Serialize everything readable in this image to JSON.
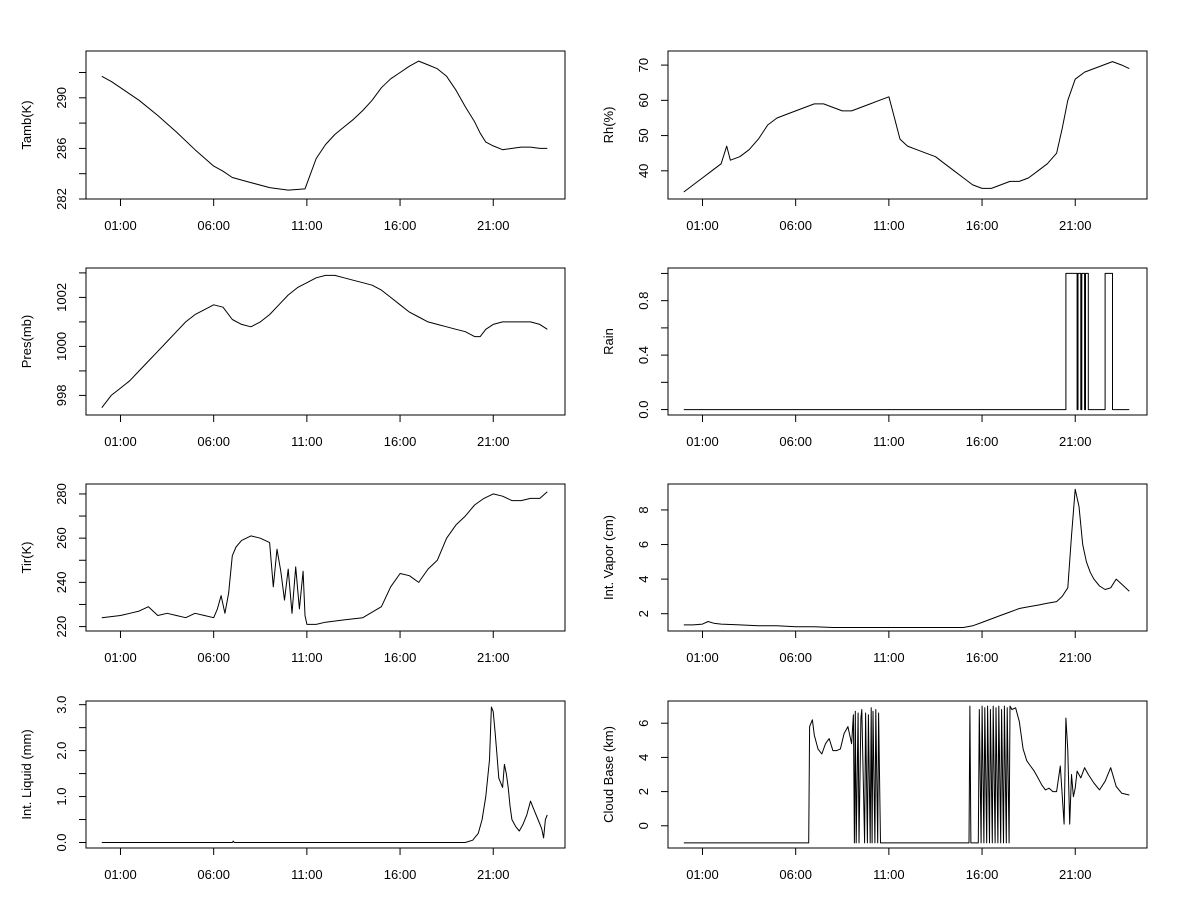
{
  "chart_data": [
    {
      "type": "line",
      "ylabel": "Tamb(K)",
      "xlabel": "",
      "x_ticks": [
        "01:00",
        "06:00",
        "11:00",
        "16:00",
        "21:00"
      ],
      "x_tick_hours": [
        1,
        6,
        11,
        16,
        21
      ],
      "xlim_hours": [
        -0.85,
        24.85
      ],
      "ylim": [
        282,
        293.7
      ],
      "y_ticks": [
        282,
        286,
        290
      ],
      "y_minor_ticks": [
        284,
        288,
        292
      ],
      "series": [
        {
          "x": [
            0,
            0.5,
            1,
            2,
            3,
            4,
            5,
            6,
            6.5,
            7,
            8,
            9,
            10,
            10.9,
            11.1,
            11.5,
            12,
            12.5,
            13,
            13.5,
            14,
            14.5,
            15,
            15.5,
            16,
            16.5,
            17,
            17.5,
            18,
            18.5,
            19,
            19.5,
            20,
            20.3,
            20.6,
            21,
            21.5,
            22,
            22.5,
            23,
            23.5,
            23.9
          ],
          "y": [
            291.7,
            291.3,
            290.8,
            289.8,
            288.6,
            287.3,
            285.9,
            284.6,
            284.2,
            283.7,
            283.3,
            282.9,
            282.7,
            282.8,
            283.6,
            285.2,
            286.3,
            287.1,
            287.7,
            288.3,
            289.0,
            289.8,
            290.8,
            291.5,
            292.0,
            292.5,
            292.9,
            292.6,
            292.3,
            291.7,
            290.6,
            289.3,
            288.1,
            287.2,
            286.5,
            286.2,
            285.9,
            286.0,
            286.1,
            286.1,
            286.0,
            286.0
          ]
        }
      ]
    },
    {
      "type": "line",
      "ylabel": "Rh(%)",
      "xlabel": "",
      "x_ticks": [
        "01:00",
        "06:00",
        "11:00",
        "16:00",
        "21:00"
      ],
      "x_tick_hours": [
        1,
        6,
        11,
        16,
        21
      ],
      "xlim_hours": [
        -0.85,
        24.85
      ],
      "ylim": [
        32,
        74
      ],
      "y_ticks": [
        40,
        50,
        60,
        70
      ],
      "series": [
        {
          "x": [
            0,
            0.5,
            1,
            1.5,
            2,
            2.3,
            2.5,
            3,
            3.5,
            4,
            4.5,
            5,
            5.5,
            6,
            6.5,
            7,
            7.5,
            8,
            8.5,
            9,
            9.5,
            10,
            10.5,
            11,
            11.3,
            11.6,
            12,
            12.5,
            13,
            13.5,
            14,
            14.5,
            15,
            15.5,
            16,
            16.5,
            17,
            17.5,
            18,
            18.5,
            19,
            19.5,
            20,
            20.3,
            20.6,
            21,
            21.5,
            22,
            22.5,
            23,
            23.5,
            23.9
          ],
          "y": [
            34,
            36,
            38,
            40,
            42,
            47,
            43,
            44,
            46,
            49,
            53,
            55,
            56,
            57,
            58,
            59,
            59,
            58,
            57,
            57,
            58,
            59,
            60,
            61,
            55,
            49,
            47,
            46,
            45,
            44,
            42,
            40,
            38,
            36,
            35,
            35,
            36,
            37,
            37,
            38,
            40,
            42,
            45,
            52,
            60,
            66,
            68,
            69,
            70,
            71,
            70,
            69
          ]
        }
      ]
    },
    {
      "type": "line",
      "ylabel": "Pres(mb)",
      "xlabel": "",
      "x_ticks": [
        "01:00",
        "06:00",
        "11:00",
        "16:00",
        "21:00"
      ],
      "x_tick_hours": [
        1,
        6,
        11,
        16,
        21
      ],
      "xlim_hours": [
        -0.85,
        24.85
      ],
      "ylim": [
        997.2,
        1003.2
      ],
      "y_ticks": [
        998,
        1000,
        1002
      ],
      "y_minor_ticks": [
        999,
        1001,
        1003
      ],
      "series": [
        {
          "x": [
            0,
            0.5,
            1,
            1.5,
            2,
            2.5,
            3,
            3.5,
            4,
            4.5,
            5,
            5.5,
            6,
            6.5,
            7,
            7.5,
            8,
            8.5,
            9,
            9.5,
            10,
            10.5,
            11,
            11.5,
            12,
            12.5,
            13,
            13.5,
            14,
            14.5,
            15,
            15.5,
            16,
            16.5,
            17,
            17.5,
            18,
            18.5,
            19,
            19.5,
            20,
            20.3,
            20.6,
            21,
            21.5,
            22,
            22.5,
            23,
            23.5,
            23.9
          ],
          "y": [
            997.5,
            998.0,
            998.3,
            998.6,
            999.0,
            999.4,
            999.8,
            1000.2,
            1000.6,
            1001.0,
            1001.3,
            1001.5,
            1001.7,
            1001.6,
            1001.1,
            1000.9,
            1000.8,
            1001.0,
            1001.3,
            1001.7,
            1002.1,
            1002.4,
            1002.6,
            1002.8,
            1002.9,
            1002.9,
            1002.8,
            1002.7,
            1002.6,
            1002.5,
            1002.3,
            1002.0,
            1001.7,
            1001.4,
            1001.2,
            1001.0,
            1000.9,
            1000.8,
            1000.7,
            1000.6,
            1000.4,
            1000.4,
            1000.7,
            1000.9,
            1001.0,
            1001.0,
            1001.0,
            1001.0,
            1000.9,
            1000.7
          ]
        }
      ]
    },
    {
      "type": "line",
      "ylabel": "Rain",
      "xlabel": "",
      "x_ticks": [
        "01:00",
        "06:00",
        "11:00",
        "16:00",
        "21:00"
      ],
      "x_tick_hours": [
        1,
        6,
        11,
        16,
        21
      ],
      "xlim_hours": [
        -0.85,
        24.85
      ],
      "ylim": [
        -0.04,
        1.04
      ],
      "y_ticks": [
        "0.0",
        "0.4",
        "0.8"
      ],
      "y_minor_ticks": [
        0.2,
        0.6,
        1.0
      ],
      "series": [
        {
          "x": [
            0,
            20.5,
            20.5,
            21.1,
            21.1,
            21.15,
            21.15,
            21.3,
            21.3,
            21.35,
            21.35,
            21.5,
            21.5,
            21.55,
            21.55,
            21.7,
            21.7,
            22.6,
            22.6,
            23.0,
            23.0,
            23.1,
            23.1,
            23.9
          ],
          "y": [
            0,
            0,
            1,
            1,
            0,
            0,
            1,
            1,
            0,
            0,
            1,
            1,
            0,
            0,
            1,
            1,
            0,
            0,
            1,
            1,
            0,
            0,
            0,
            0
          ]
        }
      ]
    },
    {
      "type": "line",
      "ylabel": "Tir(K)",
      "xlabel": "",
      "x_ticks": [
        "01:00",
        "06:00",
        "11:00",
        "16:00",
        "21:00"
      ],
      "x_tick_hours": [
        1,
        6,
        11,
        16,
        21
      ],
      "xlim_hours": [
        -0.85,
        24.85
      ],
      "ylim": [
        218,
        284.5
      ],
      "y_ticks": [
        220,
        240,
        260,
        280
      ],
      "y_minor_ticks": [
        230,
        250,
        270
      ],
      "series": [
        {
          "x": [
            0,
            1,
            1.5,
            2,
            2.5,
            3,
            3.5,
            4,
            4.5,
            5,
            5.5,
            6,
            6.2,
            6.4,
            6.6,
            6.8,
            7.0,
            7.2,
            7.5,
            8,
            8.5,
            9,
            9.2,
            9.4,
            9.6,
            9.8,
            10.0,
            10.2,
            10.4,
            10.6,
            10.8,
            10.9,
            11.0,
            11.5,
            12,
            13,
            14,
            15,
            15.5,
            16,
            16.5,
            17,
            17.5,
            18,
            18.5,
            19,
            19.5,
            20,
            20.5,
            21,
            21.5,
            22,
            22.5,
            23,
            23.5,
            23.9
          ],
          "y": [
            224,
            225,
            226,
            227,
            229,
            225,
            226,
            225,
            224,
            226,
            225,
            224,
            228,
            234,
            226,
            235,
            252,
            256,
            259,
            261,
            260,
            258,
            238,
            255,
            245,
            232,
            246,
            226,
            247,
            228,
            245,
            225,
            221,
            221,
            222,
            223,
            224,
            229,
            238,
            244,
            243,
            240,
            246,
            250,
            260,
            266,
            270,
            275,
            278,
            280,
            279,
            277,
            277,
            278,
            278,
            281
          ]
        }
      ]
    },
    {
      "type": "line",
      "ylabel": "Int. Vapor (cm)",
      "xlabel": "",
      "x_ticks": [
        "01:00",
        "06:00",
        "11:00",
        "16:00",
        "21:00"
      ],
      "x_tick_hours": [
        1,
        6,
        11,
        16,
        21
      ],
      "xlim_hours": [
        -0.85,
        24.85
      ],
      "ylim": [
        1.0,
        9.5
      ],
      "y_ticks": [
        2,
        4,
        6,
        8
      ],
      "series": [
        {
          "x": [
            0,
            0.5,
            1,
            1.3,
            1.6,
            2,
            3,
            4,
            5,
            6,
            7,
            8,
            9,
            10,
            11,
            12,
            13,
            14,
            15,
            15.5,
            16,
            16.5,
            17,
            17.5,
            18,
            18.5,
            19,
            19.5,
            20,
            20.3,
            20.6,
            20.8,
            21.0,
            21.2,
            21.4,
            21.6,
            21.8,
            22,
            22.3,
            22.6,
            22.9,
            23.2,
            23.5,
            23.9
          ],
          "y": [
            1.35,
            1.35,
            1.4,
            1.55,
            1.45,
            1.4,
            1.35,
            1.3,
            1.3,
            1.25,
            1.25,
            1.2,
            1.2,
            1.2,
            1.2,
            1.2,
            1.2,
            1.2,
            1.2,
            1.3,
            1.5,
            1.7,
            1.9,
            2.1,
            2.3,
            2.4,
            2.5,
            2.6,
            2.7,
            3.0,
            3.5,
            6.5,
            9.2,
            8.2,
            6.0,
            5.0,
            4.4,
            4.0,
            3.6,
            3.4,
            3.5,
            4.0,
            3.7,
            3.3
          ]
        }
      ]
    },
    {
      "type": "line",
      "ylabel": "Int. Liquid (mm)",
      "xlabel": "",
      "x_ticks": [
        "01:00",
        "06:00",
        "11:00",
        "16:00",
        "21:00"
      ],
      "x_tick_hours": [
        1,
        6,
        11,
        16,
        21
      ],
      "xlim_hours": [
        -0.85,
        24.85
      ],
      "ylim": [
        -0.12,
        3.08
      ],
      "y_ticks": [
        "0.0",
        "1.0",
        "2.0",
        "3.0"
      ],
      "y_minor_ticks": [
        0.5,
        1.5,
        2.5
      ],
      "series": [
        {
          "x": [
            0,
            7.0,
            7.05,
            7.1,
            19.5,
            19.9,
            20.2,
            20.4,
            20.6,
            20.8,
            20.9,
            21.0,
            21.1,
            21.2,
            21.3,
            21.5,
            21.6,
            21.7,
            21.8,
            21.9,
            22.0,
            22.2,
            22.4,
            22.6,
            22.8,
            23.0,
            23.2,
            23.4,
            23.6,
            23.7,
            23.8,
            23.9
          ],
          "y": [
            0.0,
            0.0,
            0.03,
            0.0,
            0.0,
            0.05,
            0.2,
            0.5,
            1.0,
            1.8,
            2.95,
            2.85,
            2.4,
            1.9,
            1.4,
            1.2,
            1.7,
            1.5,
            1.2,
            0.8,
            0.5,
            0.35,
            0.25,
            0.4,
            0.6,
            0.9,
            0.7,
            0.5,
            0.3,
            0.1,
            0.5,
            0.6
          ]
        }
      ]
    },
    {
      "type": "line",
      "ylabel": "Cloud Base (km)",
      "xlabel": "",
      "x_ticks": [
        "01:00",
        "06:00",
        "11:00",
        "16:00",
        "21:00"
      ],
      "x_tick_hours": [
        1,
        6,
        11,
        16,
        21
      ],
      "xlim_hours": [
        -0.85,
        24.85
      ],
      "ylim": [
        -1.3,
        7.3
      ],
      "y_ticks": [
        0,
        2,
        4,
        6
      ],
      "series": [
        {
          "x": [
            0,
            6.7,
            6.75,
            6.9,
            7.0,
            7.2,
            7.4,
            7.6,
            7.8,
            8.0,
            8.2,
            8.4,
            8.6,
            8.8,
            9.0,
            9.1,
            9.15,
            9.2,
            9.25,
            9.35,
            9.4,
            9.5,
            9.55,
            9.7,
            9.75,
            9.85,
            9.9,
            10.0,
            10.05,
            10.1,
            10.15,
            10.25,
            10.3,
            10.4,
            10.45,
            10.55,
            10.6,
            15.3,
            15.35,
            15.4,
            15.45,
            15.8,
            15.85,
            15.95,
            16.0,
            16.1,
            16.15,
            16.25,
            16.3,
            16.4,
            16.45,
            16.55,
            16.6,
            16.7,
            16.75,
            16.85,
            16.9,
            17.0,
            17.05,
            17.15,
            17.2,
            17.3,
            17.35,
            17.45,
            17.5,
            17.6,
            17.8,
            18.0,
            18.2,
            18.4,
            18.6,
            18.8,
            19.0,
            19.2,
            19.4,
            19.6,
            19.8,
            20.0,
            20.2,
            20.4,
            20.5,
            20.6,
            20.7,
            20.8,
            20.9,
            21.0,
            21.1,
            21.3,
            21.5,
            21.7,
            22.0,
            22.3,
            22.6,
            22.9,
            23.2,
            23.5,
            23.9
          ],
          "y": [
            -1,
            -1,
            5.8,
            6.2,
            5.3,
            4.5,
            4.2,
            4.8,
            5.1,
            4.4,
            4.4,
            4.5,
            5.4,
            5.8,
            4.8,
            6.5,
            -1,
            6.7,
            -1,
            6.6,
            -1,
            6.3,
            6.8,
            -1,
            6.6,
            -1,
            6.5,
            -1,
            6.9,
            -1,
            6.7,
            -1,
            6.8,
            -1,
            6.6,
            -1,
            -1,
            -1,
            7.0,
            -1,
            -1,
            -1,
            6.8,
            -1,
            7.0,
            -1,
            6.9,
            -1,
            7.0,
            -1,
            6.8,
            -1,
            7.0,
            -1,
            6.9,
            -1,
            7.0,
            -1,
            6.8,
            -1,
            7.0,
            -1,
            6.9,
            -1,
            7.0,
            6.8,
            6.9,
            6.1,
            4.5,
            3.8,
            3.5,
            3.2,
            2.8,
            2.4,
            2.1,
            2.2,
            2.0,
            2.0,
            3.5,
            0.1,
            6.3,
            4.4,
            0.1,
            3.0,
            1.7,
            2.2,
            3.2,
            2.8,
            3.4,
            3.0,
            2.5,
            2.1,
            2.6,
            3.4,
            2.3,
            1.9,
            1.8
          ]
        }
      ]
    }
  ]
}
